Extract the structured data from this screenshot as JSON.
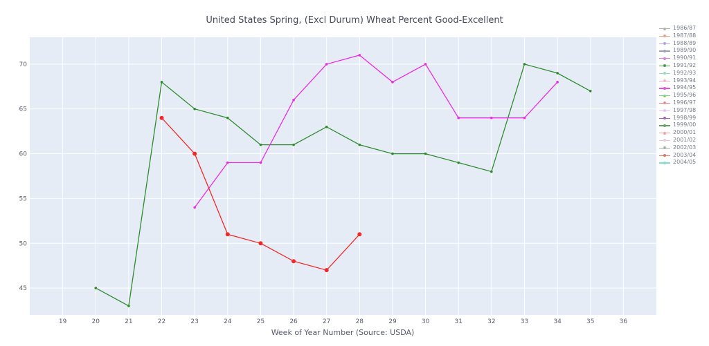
{
  "chart_data": {
    "type": "line",
    "title": "United States Spring, (Excl Durum) Wheat Percent Good-Excellent",
    "xlabel": "Week of Year Number     (Source: USDA)",
    "ylabel": "",
    "xlim": [
      18,
      37
    ],
    "ylim": [
      42,
      73
    ],
    "x_ticks": [
      19,
      20,
      21,
      22,
      23,
      24,
      25,
      26,
      27,
      28,
      29,
      30,
      31,
      32,
      33,
      34,
      35,
      36
    ],
    "y_ticks": [
      45,
      50,
      55,
      60,
      65,
      70
    ],
    "grid": true,
    "legend_placement": "right",
    "legend": [
      {
        "name": "1986/87",
        "color": "#a8b5a8"
      },
      {
        "name": "1987/88",
        "color": "#e8a08a"
      },
      {
        "name": "1988/89",
        "color": "#b8a2e0"
      },
      {
        "name": "1989/90",
        "color": "#9aa0b8"
      },
      {
        "name": "1990/91",
        "color": "#e07ad8"
      },
      {
        "name": "1991/92",
        "color": "#4a9e4a"
      },
      {
        "name": "1992/93",
        "color": "#8ee0b8"
      },
      {
        "name": "1993/94",
        "color": "#f0b8c0"
      },
      {
        "name": "1994/95",
        "color": "#e34fe3"
      },
      {
        "name": "1995/96",
        "color": "#7ed07e"
      },
      {
        "name": "1996/97",
        "color": "#f08a8a"
      },
      {
        "name": "1997/98",
        "color": "#d8c8f0"
      },
      {
        "name": "1998/99",
        "color": "#a060c0"
      },
      {
        "name": "1999/00",
        "color": "#60a060"
      },
      {
        "name": "2000/01",
        "color": "#f0a0a0"
      },
      {
        "name": "2001/02",
        "color": "#e8c8e0"
      },
      {
        "name": "2002/03",
        "color": "#a8a8a8"
      },
      {
        "name": "2003/04",
        "color": "#f07060"
      },
      {
        "name": "2004/05",
        "color": "#7ee0c8"
      }
    ],
    "series": [
      {
        "name": "green",
        "color": "#2e8b2e",
        "x": [
          20,
          21,
          22,
          23,
          24,
          25,
          26,
          27,
          28,
          29,
          30,
          31,
          32,
          33,
          34,
          35
        ],
        "y": [
          45,
          43,
          68,
          65,
          64,
          61,
          61,
          63,
          61,
          60,
          60,
          59,
          58,
          70,
          69,
          67
        ]
      },
      {
        "name": "magenta",
        "color": "#e62ee6",
        "x": [
          23,
          24,
          25,
          26,
          27,
          28,
          29,
          30,
          31,
          32,
          33,
          34
        ],
        "y": [
          54,
          59,
          59,
          66,
          70,
          71,
          68,
          70,
          64,
          64,
          64,
          68
        ]
      },
      {
        "name": "red",
        "color": "#f02a2a",
        "x": [
          22,
          23,
          24,
          25,
          26,
          27,
          28
        ],
        "y": [
          64,
          60,
          51,
          50,
          48,
          47,
          51
        ]
      }
    ]
  }
}
